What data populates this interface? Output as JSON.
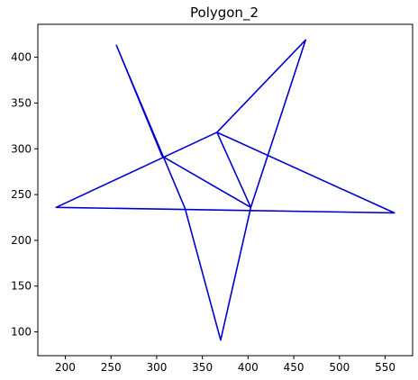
{
  "chart_data": {
    "type": "line",
    "title": "Polygon_2",
    "xlabel": "",
    "ylabel": "",
    "xlim": [
      170,
      580
    ],
    "ylim": [
      74,
      436
    ],
    "grid": false,
    "xticks": [
      200,
      250,
      300,
      350,
      400,
      450,
      500,
      550
    ],
    "yticks": [
      100,
      150,
      200,
      250,
      300,
      350,
      400
    ],
    "series": [
      {
        "color": "#0000cc",
        "points": [
          [
            256,
            413
          ],
          [
            331,
            235
          ],
          [
            370,
            91
          ],
          [
            403,
            236
          ],
          [
            463,
            419
          ],
          [
            366,
            318
          ],
          [
            560,
            230
          ],
          [
            190,
            236
          ],
          [
            366,
            318
          ],
          [
            403,
            236
          ],
          [
            306,
            292
          ],
          [
            256,
            413
          ]
        ]
      }
    ]
  }
}
